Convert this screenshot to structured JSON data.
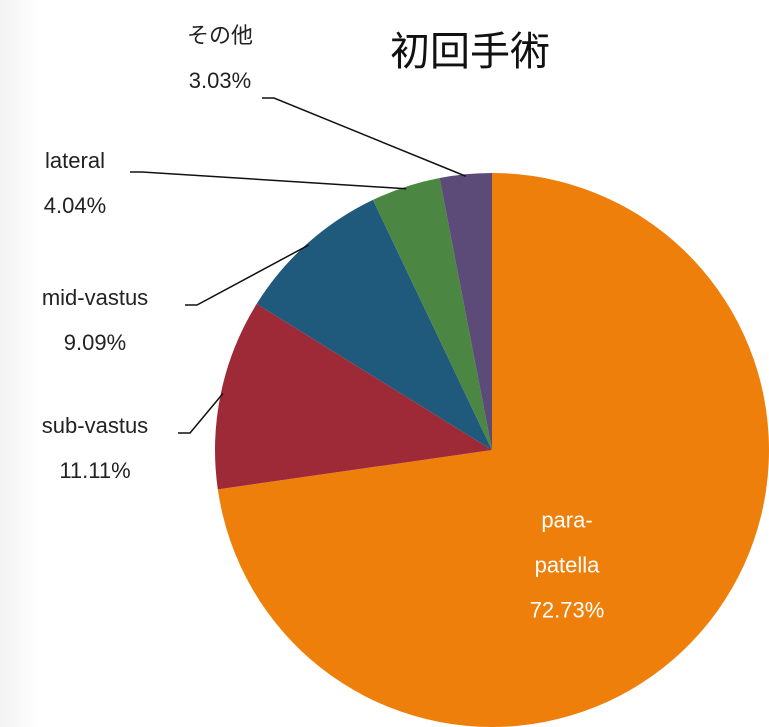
{
  "chart_data": {
    "type": "pie",
    "title": "初回手術",
    "categories": [
      "para-patella",
      "sub-vastus",
      "mid-vastus",
      "lateral",
      "その他"
    ],
    "values": [
      72.73,
      11.11,
      9.09,
      4.04,
      3.03
    ],
    "value_labels": [
      "72.73%",
      "11.11%",
      "9.09%",
      "4.04%",
      "3.03%"
    ],
    "colors": [
      "#ef7f0b",
      "#9e2a37",
      "#1f5a7c",
      "#4b8742",
      "#5c4a78"
    ]
  }
}
